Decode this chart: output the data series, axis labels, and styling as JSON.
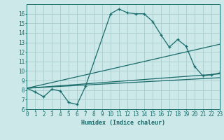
{
  "xlabel": "Humidex (Indice chaleur)",
  "bg_color": "#cce8e8",
  "line_color": "#1a6b6b",
  "grid_color": "#aacccc",
  "xlim": [
    0,
    23
  ],
  "ylim": [
    6,
    17
  ],
  "yticks": [
    6,
    7,
    8,
    9,
    10,
    11,
    12,
    13,
    14,
    15,
    16
  ],
  "xticks": [
    0,
    1,
    2,
    3,
    4,
    5,
    6,
    7,
    8,
    9,
    10,
    11,
    12,
    13,
    14,
    15,
    16,
    17,
    18,
    19,
    20,
    21,
    22,
    23
  ],
  "curve1_x": [
    0,
    1,
    2,
    3,
    4,
    5,
    6,
    7,
    10,
    11,
    12,
    13,
    14,
    15,
    16,
    17,
    18,
    19,
    20,
    21,
    22,
    23
  ],
  "curve1_y": [
    8.2,
    7.8,
    7.3,
    8.1,
    7.9,
    6.7,
    6.5,
    8.4,
    16.0,
    16.5,
    16.1,
    16.0,
    16.0,
    15.2,
    13.8,
    12.5,
    13.3,
    12.6,
    10.5,
    9.5,
    9.6,
    9.8
  ],
  "line2_x": [
    0,
    23
  ],
  "line2_y": [
    8.2,
    9.7
  ],
  "line3_x": [
    0,
    23
  ],
  "line3_y": [
    8.2,
    12.8
  ],
  "line4_x": [
    0,
    23
  ],
  "line4_y": [
    8.2,
    9.3
  ]
}
